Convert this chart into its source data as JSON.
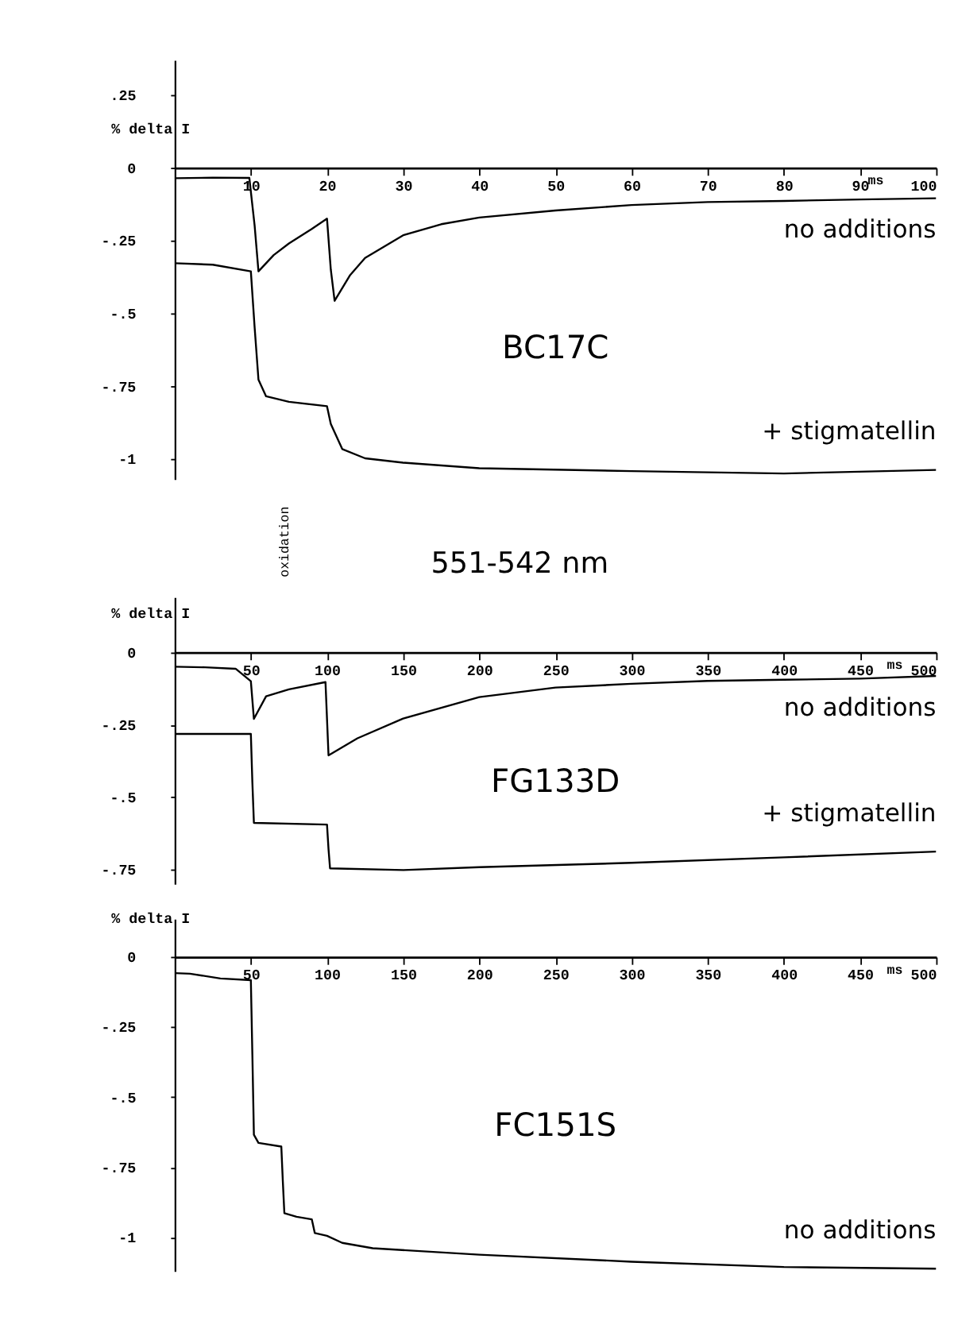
{
  "chart_data": [
    {
      "type": "line",
      "xlabel": "ms",
      "ylabel": "% delta I",
      "xlim": [
        0,
        100
      ],
      "xticks": [
        10,
        20,
        30,
        40,
        50,
        60,
        70,
        80,
        90,
        100
      ],
      "ylim": [
        -1.07,
        0.37
      ],
      "yticks": [
        {
          "value": 0.25,
          "label": ".25"
        },
        0,
        {
          "value": -0.25,
          "label": "-.25"
        },
        {
          "value": -0.5,
          "label": "-.5"
        },
        {
          "value": -0.75,
          "label": "-.75"
        },
        -1
      ],
      "annotations": [
        "BC17C"
      ],
      "series": [
        {
          "name": "no additions",
          "color": "#000000",
          "x": [
            0,
            5,
            9.8,
            10.5,
            11,
            13,
            15,
            18,
            20,
            20.5,
            21,
            23,
            25,
            30,
            35,
            40,
            50,
            60,
            70,
            80,
            90,
            100
          ],
          "values": [
            -0.036,
            -0.034,
            -0.035,
            -0.2,
            -0.356,
            -0.3,
            -0.26,
            -0.21,
            -0.175,
            -0.35,
            -0.457,
            -0.37,
            -0.31,
            -0.232,
            -0.194,
            -0.171,
            -0.147,
            -0.128,
            -0.118,
            -0.114,
            -0.109,
            -0.105
          ]
        },
        {
          "name": "+ stigmatellin",
          "color": "#000000",
          "x": [
            0,
            5,
            10,
            10.5,
            11,
            12,
            15,
            20,
            20.5,
            22,
            25,
            30,
            40,
            60,
            80,
            100
          ],
          "values": [
            -0.328,
            -0.333,
            -0.356,
            -0.55,
            -0.728,
            -0.785,
            -0.804,
            -0.819,
            -0.88,
            -0.966,
            -0.998,
            -1.013,
            -1.032,
            -1.042,
            -1.05,
            -1.038
          ]
        }
      ]
    },
    {
      "type": "line",
      "xlabel": "ms",
      "ylabel": "% delta I",
      "xlim": [
        0,
        500
      ],
      "xticks": [
        50,
        100,
        150,
        200,
        250,
        300,
        350,
        400,
        450,
        500
      ],
      "ylim": [
        -0.8,
        0.19
      ],
      "yticks": [
        0,
        {
          "value": -0.25,
          "label": "-.25"
        },
        {
          "value": -0.5,
          "label": "-.5"
        },
        {
          "value": -0.75,
          "label": "-.75"
        }
      ],
      "annotations": [
        "551-542 nm",
        "oxidation",
        "FG133D"
      ],
      "series": [
        {
          "name": "no additions",
          "color": "#000000",
          "x": [
            0,
            20,
            40,
            50,
            52,
            60,
            75,
            99,
            101,
            120,
            150,
            200,
            250,
            300,
            350,
            400,
            450,
            500
          ],
          "values": [
            -0.05,
            -0.052,
            -0.057,
            -0.1,
            -0.23,
            -0.152,
            -0.128,
            -0.103,
            -0.356,
            -0.297,
            -0.229,
            -0.155,
            -0.122,
            -0.109,
            -0.099,
            -0.095,
            -0.091,
            -0.082
          ]
        },
        {
          "name": "+ stigmatellin",
          "color": "#000000",
          "x": [
            0,
            50,
            51,
            52,
            100,
            101,
            102,
            150,
            200,
            300,
            400,
            500
          ],
          "values": [
            -0.282,
            -0.282,
            -0.45,
            -0.589,
            -0.595,
            -0.68,
            -0.746,
            -0.752,
            -0.742,
            -0.727,
            -0.708,
            -0.688
          ]
        }
      ]
    },
    {
      "type": "line",
      "xlabel": "ms",
      "ylabel": "% delta I",
      "xlim": [
        0,
        500
      ],
      "xticks": [
        50,
        100,
        150,
        200,
        250,
        300,
        350,
        400,
        450,
        500
      ],
      "ylim": [
        -1.12,
        0.135
      ],
      "yticks": [
        0,
        {
          "value": -0.25,
          "label": "-.25"
        },
        {
          "value": -0.5,
          "label": "-.5"
        },
        {
          "value": -0.75,
          "label": "-.75"
        },
        -1
      ],
      "annotations": [
        "FC151S"
      ],
      "series": [
        {
          "name": "no additions",
          "color": "#000000",
          "x": [
            0,
            10,
            30,
            50,
            51,
            52,
            55,
            70,
            71,
            72,
            80,
            90,
            92,
            100,
            110,
            130,
            200,
            300,
            400,
            500
          ],
          "values": [
            -0.058,
            -0.06,
            -0.077,
            -0.083,
            -0.35,
            -0.634,
            -0.663,
            -0.676,
            -0.8,
            -0.913,
            -0.926,
            -0.935,
            -0.984,
            -0.994,
            -1.019,
            -1.038,
            -1.061,
            -1.086,
            -1.105,
            -1.111
          ]
        }
      ]
    }
  ]
}
